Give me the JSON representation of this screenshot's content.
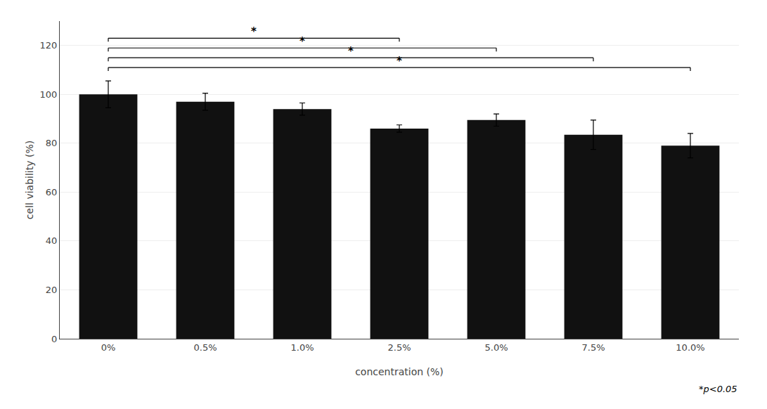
{
  "chart_data": {
    "type": "bar",
    "categories": [
      "0%",
      "0.5%",
      "1.0%",
      "2.5%",
      "5.0%",
      "7.5%",
      "10.0%"
    ],
    "values": [
      100.0,
      97.0,
      94.0,
      86.0,
      89.5,
      83.5,
      79.0
    ],
    "errors": [
      5.5,
      3.5,
      2.5,
      1.5,
      2.5,
      6.0,
      5.0
    ],
    "color": "#111111",
    "xlabel": "concentration (%)",
    "ylabel": "cell viability (%)",
    "ylim": [
      0,
      130
    ],
    "yticks": [
      0,
      20,
      40,
      60,
      80,
      100,
      120
    ],
    "grid": true,
    "brackets": [
      {
        "from": "0%",
        "to": "2.5%",
        "y": 123,
        "label": "*"
      },
      {
        "from": "0%",
        "to": "5.0%",
        "y": 119,
        "label": "*"
      },
      {
        "from": "0%",
        "to": "7.5%",
        "y": 115,
        "label": "*"
      },
      {
        "from": "0%",
        "to": "10.0%",
        "y": 111,
        "label": "*"
      }
    ],
    "annotation": "*p<0.05"
  }
}
